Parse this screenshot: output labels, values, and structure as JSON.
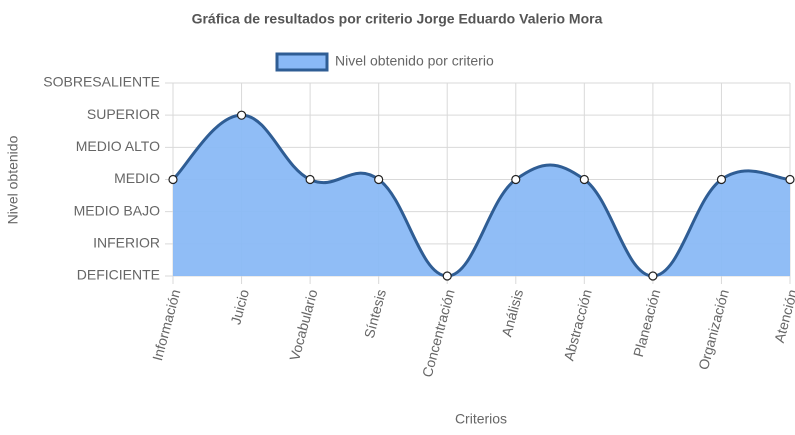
{
  "chart_data": {
    "type": "line",
    "title": "Gráfica de resultados por criterio Jorge Eduardo Valerio Mora",
    "x_label": "Criterios",
    "y_label": "Nivel obtenido",
    "categories": [
      "Información",
      "Juicio",
      "Vocabulario",
      "Síntesis",
      "Concentración",
      "Análisis",
      "Abstracción",
      "Planeación",
      "Organización",
      "Atención"
    ],
    "series": [
      {
        "name": "Nivel obtenido por criterio",
        "color": "#2f5d94",
        "fill": "#8ab9f6",
        "values": [
          3,
          5,
          3,
          3,
          0,
          3,
          3,
          0,
          3,
          3
        ]
      }
    ],
    "ylim": [
      0,
      6
    ],
    "yticks": [
      {
        "value": 0,
        "label": "DEFICIENTE"
      },
      {
        "value": 1,
        "label": "INFERIOR"
      },
      {
        "value": 2,
        "label": "MEDIO BAJO"
      },
      {
        "value": 3,
        "label": "MEDIO"
      },
      {
        "value": 4,
        "label": "MEDIO ALTO"
      },
      {
        "value": 5,
        "label": "SUPERIOR"
      },
      {
        "value": 6,
        "label": "SOBRESALIENTE"
      }
    ],
    "grid": true,
    "legend": "top"
  }
}
